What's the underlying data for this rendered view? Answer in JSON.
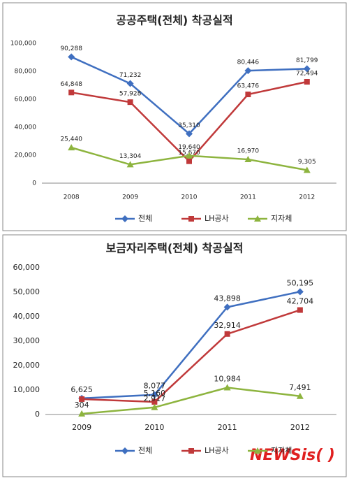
{
  "chart_data": [
    {
      "type": "line",
      "title": "공공주택(전체) 착공실적",
      "categories": [
        "2008",
        "2009",
        "2010",
        "2011",
        "2012"
      ],
      "series": [
        {
          "name": "전체",
          "color": "#3f6fc0",
          "values": [
            90288,
            71232,
            35310,
            80446,
            81799
          ],
          "value_labels": [
            "90,288",
            "71,232",
            "35,310",
            "80,446",
            "81,799"
          ]
        },
        {
          "name": "LH공사",
          "color": "#c0393a",
          "values": [
            64848,
            57928,
            15670,
            63476,
            72494
          ],
          "value_labels": [
            "64,848",
            "57,928",
            "15,670",
            "63,476",
            "72,494"
          ]
        },
        {
          "name": "지자체",
          "color": "#8db43e",
          "values": [
            25440,
            13304,
            19640,
            16970,
            9305
          ],
          "value_labels": [
            "25,440",
            "13,304",
            "19,640",
            "16,970",
            "9,305"
          ]
        }
      ],
      "ylim": [
        0,
        100000
      ],
      "yticks": [
        0,
        {
          "value": 20000,
          "label": "20,000"
        },
        {
          "value": 40000,
          "label": "40,000"
        },
        {
          "value": 60000,
          "label": "60,000"
        },
        {
          "value": 80000,
          "label": "80,000"
        },
        {
          "value": 100000,
          "label": "100,000"
        }
      ],
      "grid": false,
      "legend": "bottom"
    },
    {
      "type": "line",
      "title": "보금자리주택(전체) 착공실적",
      "categories": [
        "2009",
        "2010",
        "2011",
        "2012"
      ],
      "series": [
        {
          "name": "전체",
          "color": "#3f6fc0",
          "values": [
            6625,
            8077,
            43898,
            50195
          ],
          "value_labels": [
            "6,625",
            "8,077",
            "43,898",
            "50,195"
          ]
        },
        {
          "name": "LH공사",
          "color": "#c0393a",
          "values": [
            6300,
            5160,
            32914,
            42704
          ],
          "value_labels": [
            null,
            "5,160",
            "32,914",
            "42,704"
          ]
        },
        {
          "name": "지자체",
          "color": "#8db43e",
          "values": [
            304,
            2917,
            10984,
            7491
          ],
          "value_labels": [
            "304",
            "2,917",
            "10,984",
            "7,491"
          ]
        }
      ],
      "ylim": [
        0,
        60000
      ],
      "yticks": [
        0,
        {
          "value": 10000,
          "label": "10,000"
        },
        {
          "value": 20000,
          "label": "20,000"
        },
        {
          "value": 30000,
          "label": "30,000"
        },
        {
          "value": 40000,
          "label": "40,000"
        },
        {
          "value": 50000,
          "label": "50,000"
        },
        {
          "value": 60000,
          "label": "60,000"
        }
      ],
      "grid": false,
      "legend": "bottom"
    }
  ],
  "watermark": "NEWSis( )"
}
